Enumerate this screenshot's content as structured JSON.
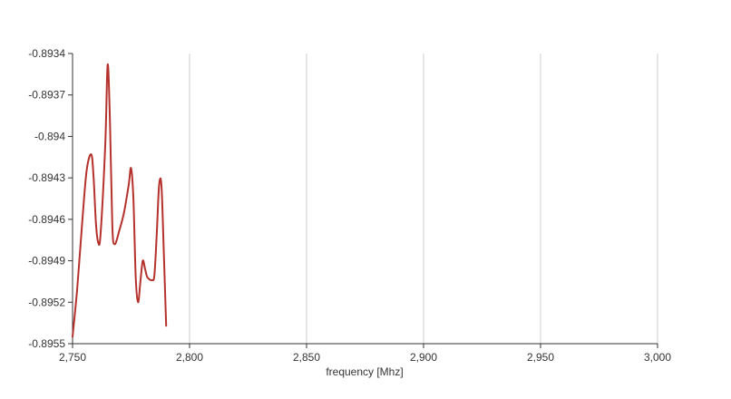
{
  "chart_data": {
    "type": "line",
    "title": "",
    "xlabel": "frequency [Mhz]",
    "ylabel": "",
    "xlim": [
      2750,
      3000
    ],
    "ylim": [
      -0.8955,
      -0.8934
    ],
    "x_ticks": [
      2750,
      2800,
      2850,
      2900,
      2950,
      3000
    ],
    "x_tick_labels": [
      "2,750",
      "2,800",
      "2,850",
      "2,900",
      "2,950",
      "3,000"
    ],
    "y_ticks": [
      -0.8934,
      -0.8937,
      -0.894,
      -0.8943,
      -0.8946,
      -0.8949,
      -0.8952,
      -0.8955
    ],
    "y_tick_labels": [
      "-0.8934",
      "-0.8937",
      "-0.894",
      "-0.8943",
      "-0.8946",
      "-0.8949",
      "-0.8952",
      "-0.8955"
    ],
    "grid": {
      "vertical": true,
      "horizontal": false
    },
    "colors": {
      "line": "#b5312b",
      "grid": "#cccccc",
      "axis": "#333333"
    },
    "series": [
      {
        "x": [
          2750,
          2752,
          2754,
          2756,
          2758,
          2759,
          2760,
          2761,
          2762,
          2764,
          2765,
          2766,
          2767,
          2768,
          2770,
          2772,
          2774,
          2775,
          2776,
          2777,
          2778,
          2779,
          2780,
          2781,
          2782,
          2784,
          2785,
          2786,
          2787,
          2788,
          2789,
          2790
        ],
        "y": [
          -0.89545,
          -0.8951,
          -0.89465,
          -0.89425,
          -0.89413,
          -0.8943,
          -0.89463,
          -0.89477,
          -0.8947,
          -0.89405,
          -0.89348,
          -0.8939,
          -0.89465,
          -0.89478,
          -0.89468,
          -0.89455,
          -0.89435,
          -0.89423,
          -0.89445,
          -0.89502,
          -0.8952,
          -0.89505,
          -0.8949,
          -0.89496,
          -0.89502,
          -0.89504,
          -0.895,
          -0.8947,
          -0.89435,
          -0.89436,
          -0.89484,
          -0.89537
        ]
      }
    ]
  }
}
